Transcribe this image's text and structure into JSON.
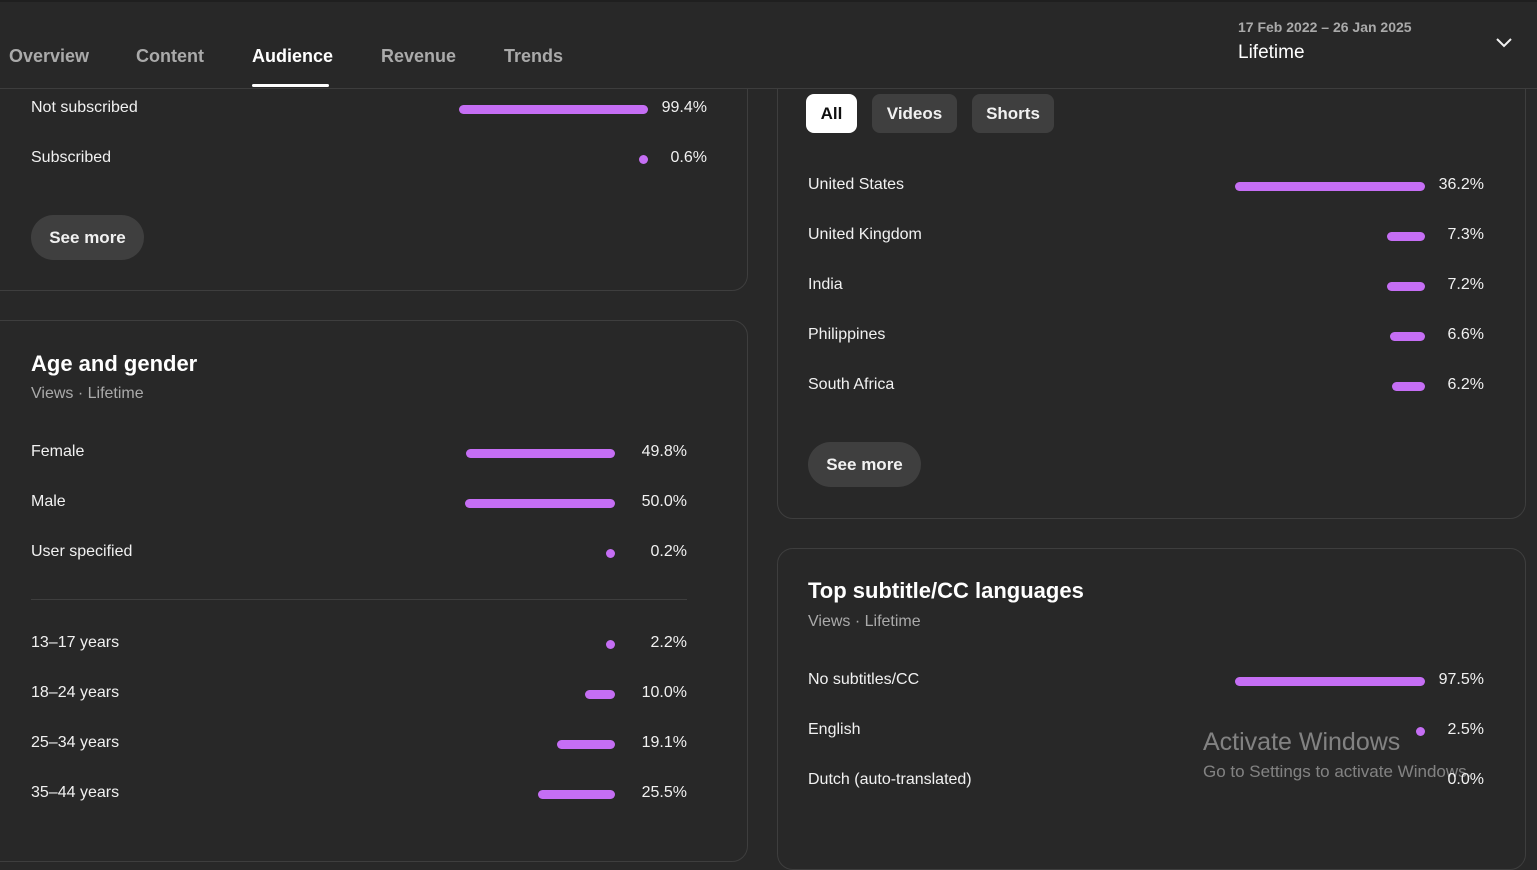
{
  "tabs": [
    {
      "label": "Overview"
    },
    {
      "label": "Content"
    },
    {
      "label": "Audience"
    },
    {
      "label": "Revenue"
    },
    {
      "label": "Trends"
    }
  ],
  "date_picker": {
    "range": "17 Feb 2022 – 26 Jan 2025",
    "label": "Lifetime",
    "icon": "chevron-down-icon"
  },
  "subscription": {
    "rows": [
      {
        "label": "Not subscribed",
        "value": "99.4%",
        "fraction": 0.994
      },
      {
        "label": "Subscribed",
        "value": "0.6%",
        "fraction": 0.006
      }
    ],
    "see_more": "See more"
  },
  "age_gender": {
    "title": "Age and gender",
    "subtitle": "Views · Lifetime",
    "gender_rows": [
      {
        "label": "Female",
        "value": "49.8%",
        "fraction": 0.498
      },
      {
        "label": "Male",
        "value": "50.0%",
        "fraction": 0.5
      },
      {
        "label": "User specified",
        "value": "0.2%",
        "fraction": 0.002
      }
    ],
    "age_rows": [
      {
        "label": "13–17 years",
        "value": "2.2%",
        "fraction": 0.022
      },
      {
        "label": "18–24 years",
        "value": "10.0%",
        "fraction": 0.1
      },
      {
        "label": "25–34 years",
        "value": "19.1%",
        "fraction": 0.191
      },
      {
        "label": "35–44 years",
        "value": "25.5%",
        "fraction": 0.255
      }
    ]
  },
  "geography": {
    "chips": [
      {
        "label": "All",
        "active": true
      },
      {
        "label": "Videos",
        "active": false
      },
      {
        "label": "Shorts",
        "active": false
      }
    ],
    "rows": [
      {
        "label": "United States",
        "value": "36.2%",
        "fraction": 0.362
      },
      {
        "label": "United Kingdom",
        "value": "7.3%",
        "fraction": 0.073
      },
      {
        "label": "India",
        "value": "7.2%",
        "fraction": 0.072
      },
      {
        "label": "Philippines",
        "value": "6.6%",
        "fraction": 0.066
      },
      {
        "label": "South Africa",
        "value": "6.2%",
        "fraction": 0.062
      }
    ],
    "see_more": "See more"
  },
  "subtitles": {
    "title": "Top subtitle/CC languages",
    "subtitle": "Views · Lifetime",
    "rows": [
      {
        "label": "No subtitles/CC",
        "value": "97.5%",
        "fraction": 0.975
      },
      {
        "label": "English",
        "value": "2.5%",
        "fraction": 0.025
      },
      {
        "label": "Dutch (auto-translated)",
        "value": "0.0%",
        "fraction": 0.0
      }
    ]
  },
  "watermark": {
    "line1": "Activate Windows",
    "line2": "Go to Settings to activate Windows."
  },
  "colors": {
    "bar": "#c56ef4",
    "background": "#282828",
    "chip_active": "#ffffff"
  }
}
